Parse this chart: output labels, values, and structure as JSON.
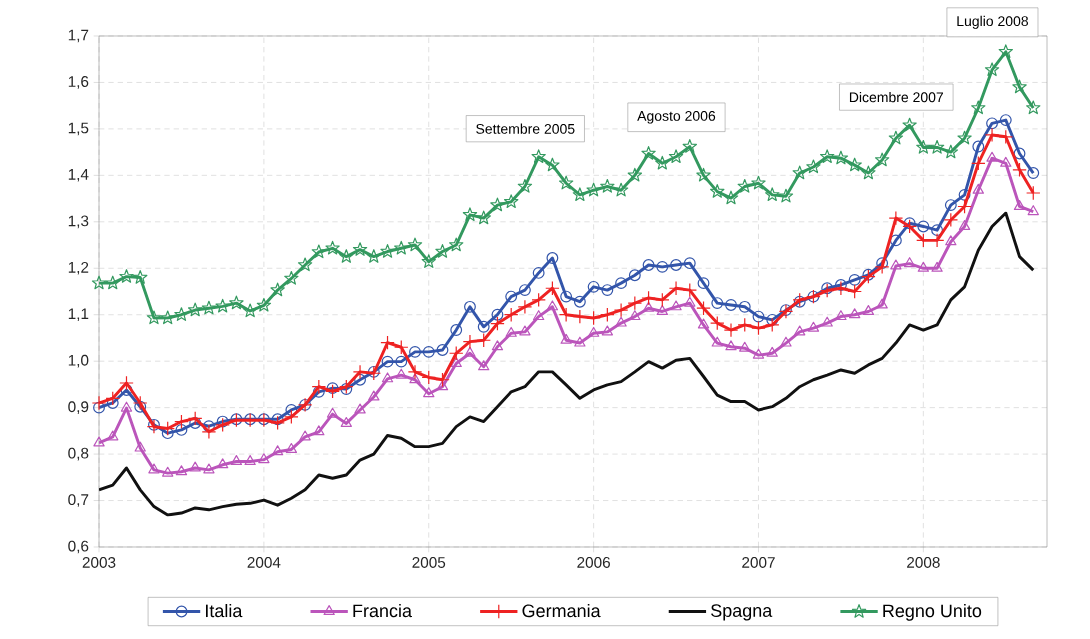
{
  "chart_data": {
    "type": "line",
    "x": [
      "2003-01",
      "2003-02",
      "2003-03",
      "2003-04",
      "2003-05",
      "2003-06",
      "2003-07",
      "2003-08",
      "2003-09",
      "2003-10",
      "2003-11",
      "2003-12",
      "2004-01",
      "2004-02",
      "2004-03",
      "2004-04",
      "2004-05",
      "2004-06",
      "2004-07",
      "2004-08",
      "2004-09",
      "2004-10",
      "2004-11",
      "2004-12",
      "2005-01",
      "2005-02",
      "2005-03",
      "2005-04",
      "2005-05",
      "2005-06",
      "2005-07",
      "2005-08",
      "2005-09",
      "2005-10",
      "2005-11",
      "2005-12",
      "2006-01",
      "2006-02",
      "2006-03",
      "2006-04",
      "2006-05",
      "2006-06",
      "2006-07",
      "2006-08",
      "2006-09",
      "2006-10",
      "2006-11",
      "2006-12",
      "2007-01",
      "2007-02",
      "2007-03",
      "2007-04",
      "2007-05",
      "2007-06",
      "2007-07",
      "2007-08",
      "2007-09",
      "2007-10",
      "2007-11",
      "2007-12",
      "2008-01",
      "2008-02",
      "2008-03",
      "2008-04",
      "2008-05",
      "2008-06",
      "2008-07",
      "2008-08",
      "2008-09"
    ],
    "series": [
      {
        "name": "Italia",
        "color": "#3355aa",
        "marker": "circle",
        "values": [
          0.9,
          0.91,
          0.938,
          0.902,
          0.863,
          0.845,
          0.852,
          0.867,
          0.86,
          0.87,
          0.875,
          0.875,
          0.875,
          0.875,
          0.895,
          0.906,
          0.934,
          0.942,
          0.94,
          0.96,
          0.977,
          0.999,
          0.999,
          1.02,
          1.02,
          1.024,
          1.067,
          1.117,
          1.074,
          1.1,
          1.139,
          1.153,
          1.19,
          1.222,
          1.139,
          1.128,
          1.16,
          1.153,
          1.168,
          1.185,
          1.207,
          1.203,
          1.207,
          1.211,
          1.168,
          1.125,
          1.121,
          1.117,
          1.096,
          1.089,
          1.11,
          1.128,
          1.139,
          1.157,
          1.164,
          1.175,
          1.186,
          1.211,
          1.26,
          1.297,
          1.29,
          1.282,
          1.336,
          1.358,
          1.462,
          1.512,
          1.519,
          1.447,
          1.405
        ]
      },
      {
        "name": "Francia",
        "color": "#bb55bb",
        "marker": "triangle",
        "values": [
          0.824,
          0.837,
          0.899,
          0.813,
          0.766,
          0.759,
          0.762,
          0.77,
          0.766,
          0.777,
          0.784,
          0.784,
          0.788,
          0.805,
          0.81,
          0.837,
          0.848,
          0.886,
          0.866,
          0.895,
          0.923,
          0.962,
          0.97,
          0.96,
          0.93,
          0.945,
          0.995,
          1.017,
          0.988,
          1.031,
          1.06,
          1.063,
          1.096,
          1.117,
          1.045,
          1.039,
          1.06,
          1.063,
          1.082,
          1.096,
          1.114,
          1.107,
          1.117,
          1.125,
          1.078,
          1.039,
          1.031,
          1.028,
          1.013,
          1.017,
          1.039,
          1.063,
          1.071,
          1.082,
          1.096,
          1.1,
          1.107,
          1.121,
          1.205,
          1.21,
          1.2,
          1.2,
          1.257,
          1.29,
          1.368,
          1.437,
          1.426,
          1.333,
          1.322
        ]
      },
      {
        "name": "Germania",
        "color": "#ee2222",
        "marker": "cross",
        "values": [
          0.91,
          0.92,
          0.953,
          0.91,
          0.859,
          0.855,
          0.87,
          0.877,
          0.848,
          0.863,
          0.873,
          0.873,
          0.873,
          0.867,
          0.88,
          0.906,
          0.945,
          0.935,
          0.945,
          0.977,
          0.974,
          1.04,
          1.03,
          0.977,
          0.965,
          0.96,
          1.017,
          1.042,
          1.045,
          1.081,
          1.1,
          1.117,
          1.132,
          1.157,
          1.1,
          1.096,
          1.093,
          1.1,
          1.11,
          1.125,
          1.136,
          1.132,
          1.157,
          1.153,
          1.114,
          1.082,
          1.067,
          1.078,
          1.071,
          1.078,
          1.107,
          1.132,
          1.139,
          1.152,
          1.157,
          1.15,
          1.182,
          1.203,
          1.308,
          1.29,
          1.26,
          1.26,
          1.304,
          1.333,
          1.426,
          1.487,
          1.483,
          1.412,
          1.362
        ]
      },
      {
        "name": "Spagna",
        "color": "#111111",
        "marker": "none",
        "values": [
          0.723,
          0.733,
          0.77,
          0.723,
          0.687,
          0.669,
          0.673,
          0.684,
          0.68,
          0.687,
          0.692,
          0.694,
          0.701,
          0.69,
          0.705,
          0.723,
          0.755,
          0.748,
          0.755,
          0.787,
          0.8,
          0.84,
          0.834,
          0.816,
          0.816,
          0.823,
          0.859,
          0.88,
          0.87,
          0.902,
          0.934,
          0.945,
          0.977,
          0.977,
          0.949,
          0.92,
          0.938,
          0.949,
          0.956,
          0.977,
          0.999,
          0.985,
          1.002,
          1.006,
          0.967,
          0.927,
          0.913,
          0.913,
          0.895,
          0.902,
          0.92,
          0.945,
          0.96,
          0.97,
          0.981,
          0.974,
          0.992,
          1.006,
          1.039,
          1.078,
          1.067,
          1.078,
          1.132,
          1.16,
          1.239,
          1.29,
          1.319,
          1.225,
          1.196
        ]
      },
      {
        "name": "Regno Unito",
        "color": "#33995f",
        "marker": "star",
        "values": [
          1.168,
          1.168,
          1.182,
          1.18,
          1.093,
          1.093,
          1.1,
          1.11,
          1.114,
          1.118,
          1.125,
          1.108,
          1.12,
          1.153,
          1.178,
          1.207,
          1.235,
          1.243,
          1.225,
          1.24,
          1.225,
          1.236,
          1.243,
          1.25,
          1.214,
          1.236,
          1.25,
          1.315,
          1.308,
          1.336,
          1.343,
          1.376,
          1.44,
          1.422,
          1.383,
          1.358,
          1.368,
          1.376,
          1.368,
          1.4,
          1.447,
          1.426,
          1.44,
          1.462,
          1.4,
          1.365,
          1.351,
          1.376,
          1.383,
          1.358,
          1.355,
          1.405,
          1.418,
          1.44,
          1.437,
          1.422,
          1.405,
          1.433,
          1.48,
          1.508,
          1.46,
          1.46,
          1.45,
          1.48,
          1.545,
          1.627,
          1.666,
          1.59,
          1.545
        ]
      }
    ],
    "xlim": [
      "2003-01",
      "2008-10"
    ],
    "xticks": [
      "2003",
      "2004",
      "2005",
      "2006",
      "2007",
      "2008"
    ],
    "ylim": [
      0.6,
      1.7
    ],
    "yticks": [
      {
        "value": 0.6,
        "label": "0,6"
      },
      {
        "value": 0.7,
        "label": "0,7"
      },
      {
        "value": 0.8,
        "label": "0,8"
      },
      {
        "value": 0.9,
        "label": "0,9"
      },
      {
        "value": 1.0,
        "label": "1,0"
      },
      {
        "value": 1.1,
        "label": "1,1"
      },
      {
        "value": 1.2,
        "label": "1,2"
      },
      {
        "value": 1.3,
        "label": "1,3"
      },
      {
        "value": 1.4,
        "label": "1,4"
      },
      {
        "value": 1.5,
        "label": "1,5"
      },
      {
        "value": 1.6,
        "label": "1,6"
      },
      {
        "value": 1.7,
        "label": "1,7"
      }
    ],
    "annotations": [
      {
        "text": "Settembre 2005",
        "x": "2005-09",
        "y": 1.44
      },
      {
        "text": "Agosto 2006",
        "x": "2006-08",
        "y": 1.462
      },
      {
        "text": "Dicembre 2007",
        "x": "2007-12",
        "y": 1.508
      },
      {
        "text": "Luglio 2008",
        "x": "2008-07",
        "y": 1.666
      }
    ],
    "grid": true,
    "legend": "bottom"
  }
}
